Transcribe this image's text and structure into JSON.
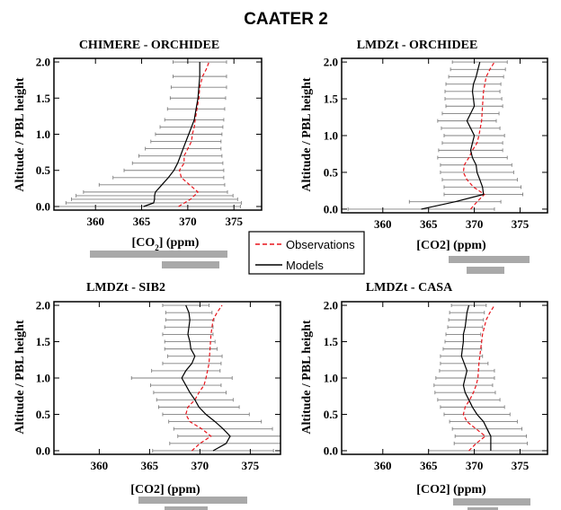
{
  "figure_title": "CAATER 2",
  "legend": {
    "observations": "Observations",
    "models": "Models"
  },
  "colors": {
    "observations": "#e8141b",
    "models": "#000000",
    "errorbar": "#808080",
    "scalebar": "#a9a9a9"
  },
  "chart_data": [
    {
      "type": "line",
      "title": "CHIMERE - ORCHIDEE",
      "xlabel": "[CO2] (ppm)",
      "xlabel_main": "[CO",
      "xlabel_sub": "2",
      "xlabel_tail": "] (ppm)",
      "ylabel": "Altitude / PBL height",
      "xlim": [
        355.5,
        378
      ],
      "ylim": [
        -0.05,
        2.05
      ],
      "xticks": [
        360,
        365,
        370,
        375
      ],
      "yticks": [
        0.0,
        0.5,
        1.0,
        1.5,
        2.0
      ],
      "ytick_labels": [
        "0.0",
        "0.5",
        "1.0",
        "1.5",
        "2.0"
      ],
      "y": [
        0.0,
        0.05,
        0.1,
        0.15,
        0.2,
        0.3,
        0.4,
        0.5,
        0.6,
        0.7,
        0.8,
        0.9,
        1.0,
        1.1,
        1.2,
        1.35,
        1.5,
        1.65,
        1.8,
        2.0
      ],
      "series": [
        {
          "name": "Models",
          "style": "solid",
          "y": [
            0.0,
            0.05,
            0.1,
            0.15,
            0.2,
            0.3,
            0.4,
            0.5,
            0.6,
            0.7,
            0.8,
            0.9,
            1.0,
            1.1,
            1.2,
            1.35,
            1.5,
            1.65,
            1.8,
            2.0
          ],
          "x": [
            365.2,
            366.3,
            366.4,
            366.4,
            366.5,
            367.2,
            367.9,
            368.5,
            368.9,
            369.2,
            369.5,
            369.8,
            370.1,
            370.4,
            370.7,
            370.9,
            371.1,
            371.2,
            371.3,
            371.3
          ],
          "err": [
            10.5,
            9.5,
            9.0,
            8.5,
            7.8,
            6.8,
            6.0,
            5.4,
            4.9,
            4.5,
            4.1,
            3.8,
            3.6,
            3.4,
            3.2,
            3.1,
            3.0,
            3.0,
            2.9,
            2.9
          ]
        },
        {
          "name": "Observations",
          "style": "dashed",
          "y": [
            0.0,
            0.1,
            0.2,
            0.3,
            0.4,
            0.5,
            0.6,
            0.7,
            0.8,
            0.9,
            1.0,
            1.1,
            1.2,
            1.35,
            1.5,
            1.65,
            1.8,
            1.9,
            2.0
          ],
          "x": [
            369.0,
            370.3,
            371.1,
            370.2,
            369.3,
            369.1,
            369.6,
            369.6,
            370.0,
            370.4,
            370.5,
            370.7,
            370.8,
            371.0,
            371.2,
            371.3,
            371.6,
            372.0,
            372.3
          ]
        }
      ]
    },
    {
      "type": "line",
      "title": "LMDZt - ORCHIDEE",
      "xlabel": "[CO2] (ppm)",
      "ylabel": "Altitude / PBL height",
      "xlim": [
        355.5,
        378
      ],
      "ylim": [
        -0.05,
        2.05
      ],
      "xticks": [
        360,
        365,
        370,
        375
      ],
      "yticks": [
        0.0,
        0.5,
        1.0,
        1.5,
        2.0
      ],
      "ytick_labels": [
        "0.0",
        "0.5",
        "1.0",
        "1.5",
        "2.0"
      ],
      "series": [
        {
          "name": "Models",
          "style": "solid",
          "y": [
            0.0,
            0.1,
            0.2,
            0.3,
            0.4,
            0.5,
            0.6,
            0.7,
            0.8,
            0.9,
            1.0,
            1.1,
            1.2,
            1.3,
            1.4,
            1.5,
            1.6,
            1.7,
            1.8,
            1.9,
            2.0
          ],
          "x": [
            364.2,
            367.9,
            371.0,
            370.9,
            370.6,
            370.3,
            370.2,
            369.8,
            369.6,
            369.8,
            370.0,
            369.6,
            369.2,
            369.6,
            370.0,
            369.9,
            369.8,
            369.9,
            370.2,
            370.4,
            370.6
          ],
          "err": [
            8.0,
            5.0,
            4.3,
            4.2,
            4.1,
            4.0,
            3.9,
            3.8,
            3.5,
            3.3,
            3.3,
            3.2,
            3.2,
            3.1,
            3.1,
            3.1,
            3.0,
            3.0,
            3.0,
            3.0,
            3.0
          ]
        },
        {
          "name": "Observations",
          "style": "dashed",
          "y": [
            0.0,
            0.1,
            0.2,
            0.3,
            0.4,
            0.5,
            0.6,
            0.7,
            0.8,
            0.9,
            1.0,
            1.2,
            1.4,
            1.6,
            1.8,
            1.9,
            2.0
          ],
          "x": [
            369.6,
            370.3,
            371.1,
            369.9,
            369.2,
            368.8,
            368.9,
            369.4,
            369.8,
            370.3,
            370.5,
            370.8,
            370.9,
            371.0,
            371.3,
            371.7,
            372.2
          ]
        }
      ]
    },
    {
      "type": "line",
      "title": "LMDZt - SIB2",
      "xlabel": "[CO2] (ppm)",
      "ylabel": "Altitude / PBL height",
      "xlim": [
        355.5,
        378
      ],
      "ylim": [
        -0.05,
        2.05
      ],
      "xticks": [
        360,
        365,
        370,
        375
      ],
      "yticks": [
        0.0,
        0.5,
        1.0,
        1.5,
        2.0
      ],
      "ytick_labels": [
        "0.0",
        "0.5",
        "1.0",
        "1.5",
        "2.0"
      ],
      "series": [
        {
          "name": "Models",
          "style": "solid",
          "y": [
            0.0,
            0.1,
            0.2,
            0.3,
            0.4,
            0.5,
            0.6,
            0.7,
            0.8,
            0.9,
            1.0,
            1.1,
            1.2,
            1.3,
            1.4,
            1.5,
            1.6,
            1.7,
            1.8,
            1.9,
            2.0
          ],
          "x": [
            371.3,
            372.6,
            373.0,
            372.3,
            371.5,
            370.6,
            369.9,
            369.5,
            369.0,
            368.6,
            368.2,
            368.6,
            369.2,
            369.5,
            369.1,
            369.0,
            368.8,
            368.9,
            369.0,
            368.9,
            368.6
          ],
          "err": [
            6.0,
            5.6,
            5.2,
            4.9,
            4.6,
            4.3,
            4.0,
            3.8,
            3.6,
            3.5,
            5.0,
            3.4,
            2.9,
            2.7,
            2.6,
            2.5,
            2.5,
            2.4,
            2.4,
            2.3,
            2.3
          ]
        },
        {
          "name": "Observations",
          "style": "dashed",
          "y": [
            0.0,
            0.1,
            0.2,
            0.3,
            0.4,
            0.5,
            0.6,
            0.7,
            0.8,
            0.9,
            1.0,
            1.2,
            1.4,
            1.6,
            1.8,
            1.9,
            2.0
          ],
          "x": [
            369.2,
            370.0,
            371.1,
            370.2,
            369.0,
            368.6,
            368.8,
            369.5,
            369.9,
            370.4,
            370.6,
            370.9,
            371.0,
            371.1,
            371.3,
            371.7,
            372.2
          ]
        }
      ]
    },
    {
      "type": "line",
      "title": "LMDZt - CASA",
      "xlabel": "[CO2] (ppm)",
      "ylabel": "Altitude / PBL height",
      "xlim": [
        355.5,
        378
      ],
      "ylim": [
        -0.05,
        2.05
      ],
      "xticks": [
        360,
        365,
        370,
        375
      ],
      "yticks": [
        0.0,
        0.5,
        1.0,
        1.5,
        2.0
      ],
      "ytick_labels": [
        "0.0",
        "0.5",
        "1.0",
        "1.5",
        "2.0"
      ],
      "series": [
        {
          "name": "Models",
          "style": "solid",
          "y": [
            0.0,
            0.1,
            0.2,
            0.3,
            0.4,
            0.5,
            0.6,
            0.7,
            0.8,
            0.9,
            1.0,
            1.1,
            1.2,
            1.3,
            1.4,
            1.5,
            1.6,
            1.7,
            1.8,
            1.9,
            2.0
          ],
          "x": [
            371.8,
            371.8,
            371.8,
            371.4,
            371.0,
            370.3,
            369.8,
            369.4,
            369.0,
            368.8,
            369.0,
            369.2,
            368.9,
            368.6,
            368.7,
            368.8,
            368.8,
            369.0,
            369.1,
            369.2,
            369.4
          ],
          "err": [
            6.8,
            4.0,
            3.9,
            3.8,
            3.7,
            3.6,
            3.5,
            3.4,
            3.3,
            3.2,
            3.2,
            3.0,
            2.6,
            2.3,
            2.1,
            2.0,
            1.9,
            1.9,
            1.9,
            1.9,
            1.9
          ]
        },
        {
          "name": "Observations",
          "style": "dashed",
          "y": [
            0.0,
            0.1,
            0.2,
            0.3,
            0.4,
            0.5,
            0.6,
            0.7,
            0.8,
            0.9,
            1.0,
            1.2,
            1.4,
            1.6,
            1.8,
            1.9,
            2.0
          ],
          "x": [
            369.4,
            370.2,
            371.2,
            370.2,
            369.2,
            368.8,
            369.0,
            369.5,
            369.9,
            370.2,
            370.4,
            370.5,
            370.7,
            370.9,
            371.3,
            371.7,
            372.2
          ]
        }
      ]
    }
  ]
}
